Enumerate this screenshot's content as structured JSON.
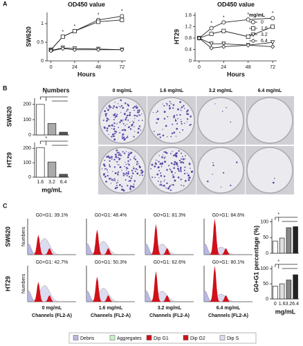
{
  "figure": {
    "panels": [
      "A",
      "B",
      "C"
    ],
    "dish_columns": [
      "0 mg/mL",
      "1.6 mg/mL",
      "3.2 mg/mL",
      "6.4 mg/mL"
    ],
    "flow_rows": [
      "SW620",
      "HT29"
    ],
    "flow_labels": [
      [
        "G0+G1: 39.1%",
        "G0+G1: 48.4%",
        "G0+G1: 81.3%",
        "G0+G1: 84.6%"
      ],
      [
        "G0+G1: 42.7%",
        "G0+G1: 50.3%",
        "G0+G1: 62.6%",
        "G0+G1: 80.1%"
      ]
    ],
    "flow_columns": [
      "0 mg/mL",
      "1.6 mg/mL",
      "3.2 mg/mL",
      "6.4 mg/mL"
    ],
    "flow_x_label": "Channels (FL2-A)",
    "flow_y_label": "Numbers",
    "flow_legend": [
      {
        "name": "Debris",
        "color": "#b9b9e6"
      },
      {
        "name": "Aggregates",
        "color": "#c8f0c8"
      },
      {
        "name": "Dip G1",
        "color": "#d0101a"
      },
      {
        "name": "Dip G2",
        "color": "#d0101a"
      },
      {
        "name": "Dip S",
        "color": "#dcdcf0"
      }
    ]
  },
  "chart_data": [
    {
      "type": "line",
      "title": "OD450 value",
      "y_label": "SW620",
      "x_label": "Hours",
      "x": [
        0,
        12,
        24,
        48,
        72
      ],
      "xlim": [
        -4,
        76
      ],
      "xticks": [
        0,
        24,
        48,
        72
      ],
      "ylim": [
        0,
        1.3
      ],
      "yticks": [
        0,
        0.5,
        1
      ],
      "series": [
        {
          "symbol": "circle",
          "color": "#222222",
          "values": [
            0.3,
            0.65,
            0.8,
            1.1,
            1.2
          ]
        },
        {
          "symbol": "square",
          "color": "#222222",
          "values": [
            0.3,
            0.65,
            0.8,
            1.05,
            1.1
          ]
        },
        {
          "symbol": "triangle",
          "color": "#222222",
          "values": [
            0.28,
            0.35,
            0.33,
            0.32,
            0.3
          ]
        },
        {
          "symbol": "diamond",
          "color": "#222222",
          "values": [
            0.27,
            0.33,
            0.3,
            0.3,
            0.3
          ]
        }
      ],
      "annotations": [
        "*",
        "*",
        "*",
        "*"
      ]
    },
    {
      "type": "line",
      "title": "OD450 value",
      "y_label": "HT29",
      "x_label": "Hours",
      "x": [
        0,
        12,
        24,
        48,
        72
      ],
      "xlim": [
        -4,
        76
      ],
      "xticks": [
        0,
        24,
        48,
        72
      ],
      "ylim": [
        0,
        1.7
      ],
      "yticks": [
        0,
        0.4,
        0.8,
        1.2,
        1.6
      ],
      "legend": true,
      "legend_title": "mg/mL",
      "series": [
        {
          "name": "0",
          "symbol": "circle",
          "color": "#222222",
          "values": [
            0.8,
            1.15,
            1.35,
            1.45,
            1.5
          ]
        },
        {
          "name": "1.6",
          "symbol": "square",
          "color": "#222222",
          "values": [
            0.8,
            0.95,
            1.05,
            0.85,
            1.2
          ]
        },
        {
          "name": "3.2",
          "symbol": "triangle",
          "color": "#222222",
          "values": [
            0.8,
            0.6,
            0.6,
            0.55,
            0.65
          ]
        },
        {
          "name": "6.4",
          "symbol": "diamond",
          "color": "#222222",
          "values": [
            0.8,
            0.45,
            0.5,
            0.55,
            0.5
          ]
        }
      ],
      "annotations": [
        "*",
        "*",
        "*",
        "*"
      ]
    },
    {
      "type": "bar",
      "title": "Numbers",
      "y_label": "SW620",
      "categories": [
        null,
        null,
        null
      ],
      "values": [
        200,
        75,
        18
      ],
      "colors": [
        "#ffffff",
        "#aaaaaa",
        "#555555"
      ],
      "ylim": [
        0,
        240
      ],
      "yticks": [
        0,
        100,
        200
      ],
      "annotations": [
        "*"
      ]
    },
    {
      "type": "bar",
      "y_label": "HT29",
      "x_label": "mg/mL",
      "categories": [
        "1.6",
        "3.2",
        "6.4"
      ],
      "values": [
        205,
        105,
        20
      ],
      "colors": [
        "#ffffff",
        "#aaaaaa",
        "#555555"
      ],
      "ylim": [
        0,
        240
      ],
      "yticks": [
        0,
        100,
        200
      ],
      "annotations": [
        "*"
      ]
    },
    {
      "type": "bar",
      "y_label": "G0+G1 percentage (%)",
      "categories": [
        null,
        null,
        null,
        null
      ],
      "values": [
        39.1,
        48.4,
        81.3,
        84.6
      ],
      "colors": [
        "#ffffff",
        "#dddddd",
        "#888888",
        "#222222"
      ],
      "ylim": [
        0,
        110
      ],
      "yticks": [
        0,
        50,
        100
      ],
      "annotations": [
        "*"
      ]
    },
    {
      "type": "bar",
      "x_label": "mg/mL",
      "categories": [
        "0",
        "1.6",
        "3.2",
        "6.4"
      ],
      "values": [
        42.7,
        50.3,
        62.6,
        80.1
      ],
      "colors": [
        "#ffffff",
        "#dddddd",
        "#888888",
        "#222222"
      ],
      "ylim": [
        0,
        110
      ],
      "yticks": [
        0,
        50,
        100
      ],
      "annotations": [
        "*"
      ]
    }
  ]
}
